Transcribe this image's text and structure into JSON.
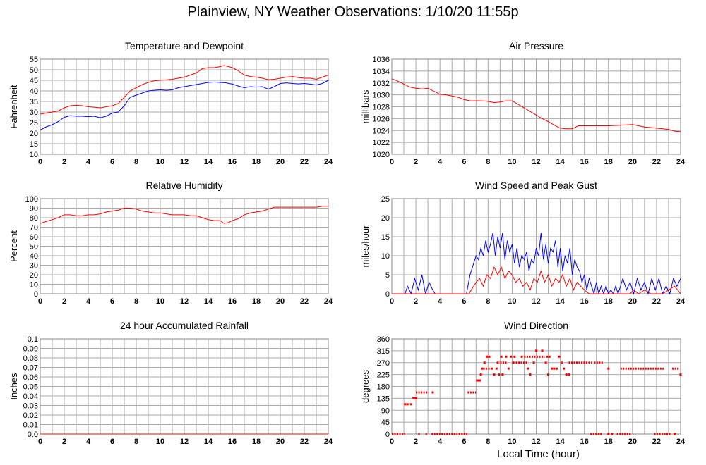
{
  "title": "Plainview, NY Weather Observations: 1/10/20 11:55p",
  "x_axis_title": "Local Time (hour)",
  "colors": {
    "temperature": "#ff0000",
    "dewpoint": "#0000ff",
    "gust": "#0000ff",
    "wind_speed": "#ff0000",
    "grid": "#aaaaaa"
  },
  "chart_data": [
    {
      "id": "temp",
      "type": "line",
      "title": "Temperature and Dewpoint",
      "ylabel": "Fahrenheit",
      "xlim": [
        0,
        24
      ],
      "ylim": [
        10,
        55
      ],
      "yticks": [
        10,
        15,
        20,
        25,
        30,
        35,
        40,
        45,
        50,
        55
      ],
      "xticks": [
        0,
        2,
        4,
        6,
        8,
        10,
        12,
        14,
        16,
        18,
        20,
        22,
        24
      ],
      "grid": true,
      "series": [
        {
          "color": "#ff0000",
          "x": [
            0,
            0.5,
            1,
            1.5,
            2,
            2.5,
            3,
            3.5,
            4,
            4.5,
            5,
            5.5,
            6,
            6.5,
            7,
            7.5,
            8,
            8.5,
            9,
            9.5,
            10,
            10.5,
            11,
            11.5,
            12,
            12.5,
            13,
            13.5,
            14,
            14.5,
            15,
            15.3,
            15.7,
            16,
            16.5,
            17,
            17.5,
            18,
            18.5,
            19,
            19.5,
            20,
            20.5,
            21,
            21.5,
            22,
            22.5,
            23,
            23.5,
            24
          ],
          "y": [
            29,
            29.5,
            30,
            30.5,
            32,
            33,
            33.2,
            33,
            32.5,
            32.3,
            32,
            32.5,
            33,
            34,
            37,
            40,
            41.5,
            43,
            44,
            44.8,
            45,
            45.2,
            45.5,
            46,
            46.5,
            47.5,
            48.5,
            50.5,
            51,
            51,
            51.5,
            52,
            51.5,
            51,
            49.5,
            47.5,
            46.8,
            46.5,
            46,
            45.3,
            45.5,
            46,
            46.5,
            46.8,
            46.3,
            46,
            46,
            45.5,
            46.5,
            47.5
          ]
        },
        {
          "color": "#0000ff",
          "x": [
            0,
            0.5,
            1,
            1.5,
            2,
            2.5,
            3,
            3.5,
            4,
            4.5,
            5,
            5.5,
            6,
            6.5,
            7,
            7.5,
            8,
            8.5,
            9,
            9.5,
            10,
            10.5,
            11,
            11.5,
            12,
            12.5,
            13,
            13.5,
            14,
            14.5,
            15,
            15.5,
            16,
            16.5,
            17,
            17.5,
            18,
            18.5,
            19,
            19.5,
            20,
            20.5,
            21,
            21.5,
            22,
            22.5,
            23,
            23.5,
            24
          ],
          "y": [
            21.5,
            23,
            24,
            25.5,
            27.5,
            28.3,
            28,
            28,
            27.8,
            28,
            27.3,
            28,
            29.5,
            30,
            33,
            37,
            38,
            39,
            40,
            40.3,
            40.5,
            40.3,
            40.5,
            41.5,
            42,
            42.5,
            43,
            43.5,
            44,
            44.2,
            44,
            43.8,
            43.2,
            42.3,
            41.5,
            42,
            41.8,
            42,
            40.8,
            42,
            43.5,
            43.8,
            43.5,
            43.3,
            43.5,
            43.2,
            42.8,
            43.5,
            45
          ]
        }
      ]
    },
    {
      "id": "pressure",
      "type": "line",
      "title": "Air Pressure",
      "ylabel": "millibars",
      "xlim": [
        0,
        24
      ],
      "ylim": [
        1020,
        1036
      ],
      "yticks": [
        1020,
        1022,
        1024,
        1026,
        1028,
        1030,
        1032,
        1034,
        1036
      ],
      "xticks": [
        0,
        2,
        4,
        6,
        8,
        10,
        12,
        14,
        16,
        18,
        20,
        22,
        24
      ],
      "grid": true,
      "series": [
        {
          "color": "#ff0000",
          "x": [
            0,
            0.5,
            1,
            1.5,
            2,
            2.5,
            3,
            3.5,
            4,
            4.5,
            5,
            5.5,
            6,
            6.5,
            7,
            7.5,
            8,
            8.5,
            9,
            9.5,
            10,
            10.5,
            11,
            11.5,
            12,
            12.5,
            13,
            13.5,
            14,
            14.5,
            15,
            15.5,
            16,
            17,
            18,
            19,
            20,
            20.5,
            21,
            21.5,
            22,
            22.5,
            23,
            23.5,
            24
          ],
          "y": [
            1032.7,
            1032.3,
            1031.8,
            1031.3,
            1031.1,
            1031.0,
            1031.1,
            1030.6,
            1030.1,
            1030.0,
            1029.8,
            1029.6,
            1029.2,
            1029.0,
            1029.0,
            1029.0,
            1028.9,
            1028.7,
            1028.8,
            1029.0,
            1029.0,
            1028.4,
            1027.8,
            1027.2,
            1026.6,
            1026.0,
            1025.5,
            1024.9,
            1024.4,
            1024.3,
            1024.3,
            1024.8,
            1024.8,
            1024.8,
            1024.8,
            1024.9,
            1025.0,
            1024.8,
            1024.6,
            1024.5,
            1024.4,
            1024.3,
            1024.2,
            1023.9,
            1023.8
          ]
        }
      ]
    },
    {
      "id": "humidity",
      "type": "line",
      "title": "Relative Humidity",
      "ylabel": "Percent",
      "xlim": [
        0,
        24
      ],
      "ylim": [
        0,
        100
      ],
      "yticks": [
        0,
        10,
        20,
        30,
        40,
        50,
        60,
        70,
        80,
        90,
        100
      ],
      "xticks": [
        0,
        2,
        4,
        6,
        8,
        10,
        12,
        14,
        16,
        18,
        20,
        22,
        24
      ],
      "grid": true,
      "series": [
        {
          "color": "#ff0000",
          "x": [
            0,
            0.5,
            1,
            1.5,
            2,
            2.5,
            3,
            3.5,
            4,
            4.5,
            5,
            5.5,
            6,
            6.5,
            7,
            7.5,
            8,
            8.5,
            9,
            9.5,
            10,
            10.5,
            11,
            11.5,
            12,
            12.5,
            13,
            13.5,
            14,
            14.5,
            15,
            15.3,
            15.7,
            16,
            16.5,
            17,
            17.5,
            18,
            18.5,
            19,
            19.5,
            20,
            20.5,
            21,
            21.5,
            22,
            22.5,
            23,
            23.5,
            24
          ],
          "y": [
            74,
            76,
            78,
            80,
            83,
            83,
            82,
            82,
            83,
            83,
            84,
            86,
            87,
            88,
            90,
            90,
            89,
            87,
            86,
            85,
            85,
            84,
            83,
            83,
            83,
            82,
            82,
            80,
            78,
            77,
            77,
            74,
            75,
            77,
            79,
            83,
            85,
            86,
            87,
            89,
            91,
            91,
            91,
            91,
            91,
            91,
            91,
            91,
            92,
            92
          ]
        }
      ]
    },
    {
      "id": "wind",
      "type": "line",
      "title": "Wind Speed and Peak Gust",
      "ylabel": "miles/hour",
      "xlim": [
        0,
        24
      ],
      "ylim": [
        0,
        25
      ],
      "yticks": [
        0,
        5,
        10,
        15,
        20,
        25
      ],
      "xticks": [
        0,
        2,
        4,
        6,
        8,
        10,
        12,
        14,
        16,
        18,
        20,
        22,
        24
      ],
      "grid": true,
      "series": [
        {
          "color": "#0000ff",
          "x": [
            0,
            1.1,
            1.3,
            1.6,
            1.9,
            2.2,
            2.5,
            2.8,
            3.1,
            3.4,
            3.6,
            6.2,
            6.5,
            6.8,
            7.0,
            7.2,
            7.4,
            7.6,
            7.8,
            8.0,
            8.2,
            8.4,
            8.6,
            8.8,
            9.0,
            9.2,
            9.4,
            9.6,
            9.8,
            10.0,
            10.2,
            10.4,
            10.6,
            10.8,
            11.0,
            11.2,
            11.4,
            11.6,
            11.8,
            12.0,
            12.2,
            12.4,
            12.6,
            12.8,
            13.0,
            13.2,
            13.4,
            13.6,
            13.8,
            14.0,
            14.2,
            14.4,
            14.6,
            14.8,
            15.0,
            15.2,
            15.4,
            15.6,
            15.8,
            16.0,
            16.2,
            16.4,
            16.6,
            16.8,
            17.0,
            17.2,
            17.4,
            17.6,
            17.8,
            18.0,
            18.2,
            18.4,
            18.6,
            18.8,
            19.2,
            19.5,
            19.8,
            20.1,
            20.4,
            20.7,
            21.0,
            21.3,
            21.6,
            21.9,
            22.2,
            22.5,
            22.8,
            23.1,
            23.4,
            23.7,
            24
          ],
          "y": [
            0,
            0,
            2,
            0,
            4,
            1,
            5,
            0,
            3,
            1,
            0,
            0,
            5,
            8,
            10,
            9,
            12,
            10,
            14,
            11,
            13,
            16,
            10,
            15,
            12,
            16,
            9,
            14,
            11,
            13,
            8,
            12,
            7,
            10,
            9,
            11,
            6,
            9,
            8,
            12,
            10,
            16,
            9,
            13,
            8,
            12,
            11,
            14,
            7,
            12,
            6,
            10,
            8,
            12,
            5,
            9,
            7,
            6,
            3,
            5,
            1,
            4,
            2,
            0,
            3,
            0,
            2,
            0,
            2,
            0,
            1,
            0,
            2,
            0,
            4,
            1,
            3,
            0,
            4,
            1,
            3,
            0,
            4,
            1,
            4,
            0,
            2,
            0,
            4,
            2,
            4
          ]
        },
        {
          "color": "#ff0000",
          "x": [
            0,
            6.4,
            6.8,
            7.0,
            7.3,
            7.6,
            7.9,
            8.2,
            8.5,
            8.8,
            9.1,
            9.4,
            9.7,
            10.0,
            10.3,
            10.6,
            10.9,
            11.2,
            11.5,
            11.8,
            12.1,
            12.4,
            12.7,
            13.0,
            13.3,
            13.6,
            13.9,
            14.2,
            14.5,
            14.8,
            15.1,
            15.4,
            15.7,
            16.0,
            16.4,
            19.8,
            20.1,
            20.5,
            21.0,
            21.5,
            22.5,
            23.0,
            23.5,
            24
          ],
          "y": [
            0,
            0,
            2,
            3,
            4,
            2,
            5,
            4,
            7,
            5,
            7,
            4,
            6,
            5,
            3,
            4,
            2,
            3,
            1,
            4,
            3,
            6,
            3,
            5,
            2,
            4,
            3,
            5,
            2,
            4,
            1,
            3,
            2,
            1,
            0,
            0,
            1,
            0,
            1,
            0,
            0,
            1,
            2,
            0
          ]
        }
      ]
    },
    {
      "id": "rain",
      "type": "line",
      "title": "24 hour Accumulated Rainfall",
      "ylabel": "Inches",
      "xlim": [
        0,
        24
      ],
      "ylim": [
        0,
        0.1
      ],
      "yticks": [
        "0.0",
        "0.01",
        "0.02",
        "0.03",
        "0.04",
        "0.05",
        "0.06",
        "0.07",
        "0.08",
        "0.09",
        "0.1"
      ],
      "xticks": [
        0,
        2,
        4,
        6,
        8,
        10,
        12,
        14,
        16,
        18,
        20,
        22,
        24
      ],
      "grid": true,
      "series": [
        {
          "color": "#ff0000",
          "x": [
            0,
            24
          ],
          "y": [
            0,
            0
          ]
        }
      ]
    },
    {
      "id": "direction",
      "type": "scatter",
      "title": "Wind Direction",
      "ylabel": "degrees",
      "xlim": [
        0,
        24
      ],
      "ylim": [
        0,
        360
      ],
      "yticks": [
        0,
        45,
        90,
        135,
        180,
        225,
        270,
        315,
        360
      ],
      "xticks": [
        0,
        2,
        4,
        6,
        8,
        10,
        12,
        14,
        16,
        18,
        20,
        22,
        24
      ],
      "grid": true,
      "segments": [
        {
          "x0": 0,
          "x1": 1.1,
          "y": 0
        },
        {
          "x0": 2.2,
          "x1": 2.4,
          "y": 0
        },
        {
          "x0": 2.8,
          "x1": 3.0,
          "y": 0
        },
        {
          "x0": 3.3,
          "x1": 6.3,
          "y": 0
        },
        {
          "x0": 2.0,
          "x1": 3.0,
          "y": 157.5
        },
        {
          "x0": 6.3,
          "x1": 7.0,
          "y": 157.5
        },
        {
          "x0": 7.6,
          "x1": 8.2,
          "y": 247.5
        },
        {
          "x0": 9.0,
          "x1": 9.6,
          "y": 270
        },
        {
          "x0": 10.3,
          "x1": 11.3,
          "y": 270
        },
        {
          "x0": 11.0,
          "x1": 12.7,
          "y": 292.5
        },
        {
          "x0": 14.7,
          "x1": 16.6,
          "y": 270
        },
        {
          "x0": 16.8,
          "x1": 17.6,
          "y": 270
        },
        {
          "x0": 16.5,
          "x1": 17.5,
          "y": 0
        },
        {
          "x0": 18.7,
          "x1": 19.9,
          "y": 0
        },
        {
          "x0": 19.0,
          "x1": 22.6,
          "y": 247.5
        },
        {
          "x0": 21.8,
          "x1": 23.2,
          "y": 0
        },
        {
          "x0": 23.3,
          "x1": 23.9,
          "y": 247.5
        }
      ],
      "points": [
        [
          1.1,
          112.5
        ],
        [
          1.3,
          112.5
        ],
        [
          1.6,
          112.5
        ],
        [
          1.8,
          135
        ],
        [
          1.9,
          135
        ],
        [
          2.0,
          135
        ],
        [
          3.4,
          157.5
        ],
        [
          7.1,
          202.5
        ],
        [
          7.2,
          202.5
        ],
        [
          7.3,
          202.5
        ],
        [
          7.4,
          225
        ],
        [
          7.5,
          247.5
        ],
        [
          7.7,
          270
        ],
        [
          7.9,
          292.5
        ],
        [
          8.1,
          292.5
        ],
        [
          8.3,
          247.5
        ],
        [
          8.5,
          225
        ],
        [
          8.7,
          247.5
        ],
        [
          8.8,
          270
        ],
        [
          8.9,
          225
        ],
        [
          9.1,
          292.5
        ],
        [
          9.2,
          225
        ],
        [
          9.5,
          292.5
        ],
        [
          9.7,
          247.5
        ],
        [
          9.9,
          292.5
        ],
        [
          10.1,
          270
        ],
        [
          10.2,
          292.5
        ],
        [
          10.8,
          292.5
        ],
        [
          11.3,
          247.5
        ],
        [
          11.5,
          225
        ],
        [
          11.8,
          270
        ],
        [
          12.0,
          315
        ],
        [
          12.5,
          315
        ],
        [
          12.8,
          270
        ],
        [
          12.9,
          292.5
        ],
        [
          13.0,
          225
        ],
        [
          13.1,
          292.5
        ],
        [
          13.3,
          247.5
        ],
        [
          13.5,
          247.5
        ],
        [
          13.7,
          247.5
        ],
        [
          13.9,
          292.5
        ],
        [
          14.1,
          270
        ],
        [
          14.3,
          247.5
        ],
        [
          14.5,
          225
        ],
        [
          14.7,
          225
        ],
        [
          18.0,
          0
        ],
        [
          18.3,
          0
        ],
        [
          18.0,
          247.5
        ],
        [
          24.0,
          225
        ],
        [
          23.5,
          0
        ]
      ]
    }
  ]
}
